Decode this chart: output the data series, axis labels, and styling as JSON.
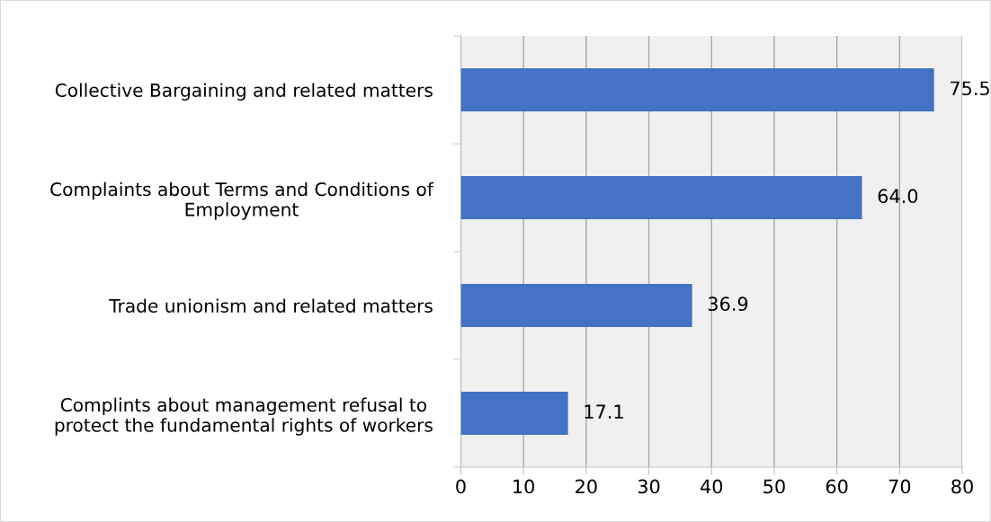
{
  "chart_data": {
    "type": "bar",
    "orientation": "horizontal",
    "categories": [
      "Collective Bargaining and related matters",
      "Complaints about Terms and Conditions of\nEmployment",
      "Trade unionism and related matters",
      "Complints about management refusal to\nprotect the fundamental rights of workers"
    ],
    "values": [
      75.5,
      64.0,
      36.9,
      17.1
    ],
    "value_labels": [
      "75.5",
      "64.0",
      "36.9",
      "17.1"
    ],
    "color": "#4472c4",
    "xlim": [
      0,
      80
    ],
    "xticks": [
      0,
      10,
      20,
      30,
      40,
      50,
      60,
      70,
      80
    ],
    "grid": "x",
    "legend": false
  }
}
